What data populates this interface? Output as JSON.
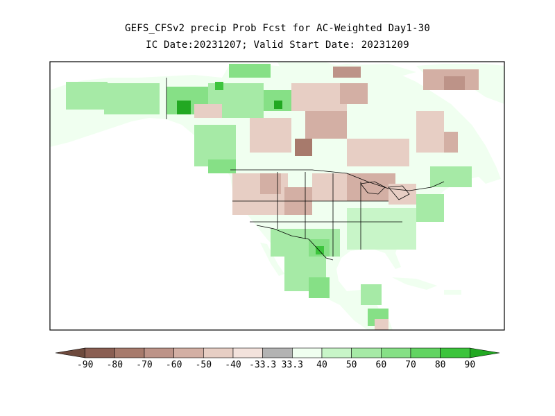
{
  "title_line1": "GEFS_CFSv2 precip Prob Fcst for AC-Weighted Day1-30",
  "title_line2": "IC Date:20231207; Valid Start Date: 20231209",
  "colorbar": {
    "labels": [
      "-90",
      "-80",
      "-70",
      "-60",
      "-50",
      "-40",
      "-33.3",
      "33.3",
      "40",
      "50",
      "60",
      "70",
      "80",
      "90"
    ],
    "colors": [
      "#6e4a3d",
      "#8a5e52",
      "#a77a6c",
      "#bd9388",
      "#d3afa4",
      "#e7cec4",
      "#f3e2dc",
      "#b3b3b3",
      "#f0fff0",
      "#c8f5c8",
      "#a6eaa6",
      "#86e086",
      "#62d462",
      "#3cc43c",
      "#22a822"
    ]
  },
  "map": {
    "ocean_color": "#ffffff",
    "land_base_color": "#f0fff0",
    "border_color": "#000000"
  }
}
